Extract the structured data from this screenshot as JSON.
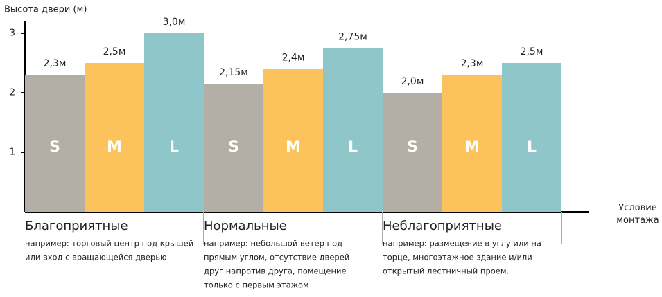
{
  "chart_data": {
    "type": "bar",
    "y_label": "Высота двери (м)",
    "x_label": "Условие монтажа",
    "categories": [
      "Благоприятные",
      "Нормальные",
      "Неблагоприятные"
    ],
    "category_notes": [
      [
        "например: торговый центр под крышей",
        "или вход с вращающейся дверью"
      ],
      [
        "например: небольшой ветер под",
        "прямым углом, отсутствие дверей",
        "друг напротив друга, помещение",
        "только с первым этажом"
      ],
      [
        "например: размещение в углу или на",
        "торце, многоэтажное здание и/или",
        "открытый лестничный проем."
      ]
    ],
    "series": [
      {
        "name": "S",
        "color": "#b3afa6",
        "values": [
          2.3,
          2.15,
          2.0
        ],
        "value_labels": [
          "2,3м",
          "2,15м",
          "2,0м"
        ]
      },
      {
        "name": "M",
        "color": "#fcc35c",
        "values": [
          2.5,
          2.4,
          2.3
        ],
        "value_labels": [
          "2,5м",
          "2,4м",
          "2,3м"
        ]
      },
      {
        "name": "L",
        "color": "#8ec6ca",
        "values": [
          3.0,
          2.75,
          2.5
        ],
        "value_labels": [
          "3,0м",
          "2,75м",
          "2,5м"
        ]
      }
    ],
    "ylim": [
      0,
      3
    ],
    "yticks": [
      1,
      2,
      3
    ]
  }
}
